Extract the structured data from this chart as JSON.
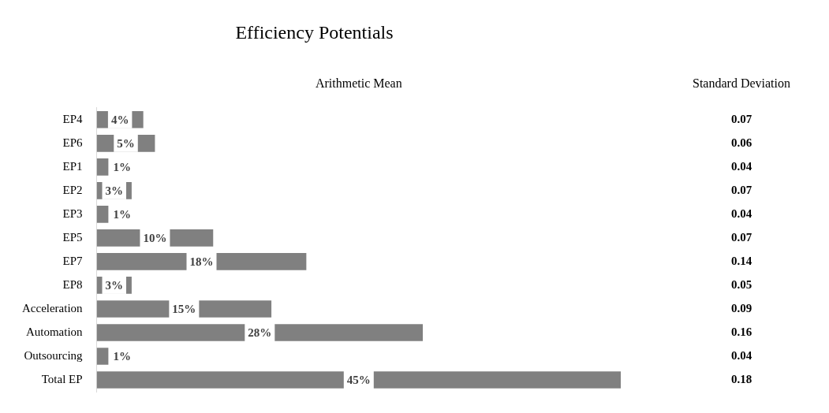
{
  "chart_data": {
    "type": "bar",
    "orientation": "horizontal",
    "title": "Efficiency Potentials",
    "categories": [
      "EP4",
      "EP6",
      "EP1",
      "EP2",
      "EP3",
      "EP5",
      "EP7",
      "EP8",
      "Acceleration",
      "Automation",
      "Outsourcing",
      "Total EP"
    ],
    "series": [
      {
        "name": "Arithmetic Mean",
        "color": "#808080",
        "values": [
          4,
          5,
          1,
          3,
          1,
          10,
          18,
          3,
          15,
          28,
          1,
          45
        ],
        "value_labels": [
          "4%",
          "5%",
          "1%",
          "3%",
          "1%",
          "10%",
          "18%",
          "3%",
          "15%",
          "28%",
          "1%",
          "45%"
        ]
      }
    ],
    "xlim": [
      0,
      45
    ],
    "grid": false,
    "legend": false,
    "annotations": [
      "Standard Deviation",
      "0.07",
      "0.06",
      "0.04",
      "0.07",
      "0.04",
      "0.07",
      "0.14",
      "0.05",
      "0.09",
      "0.16",
      "0.04",
      "0.18"
    ]
  }
}
